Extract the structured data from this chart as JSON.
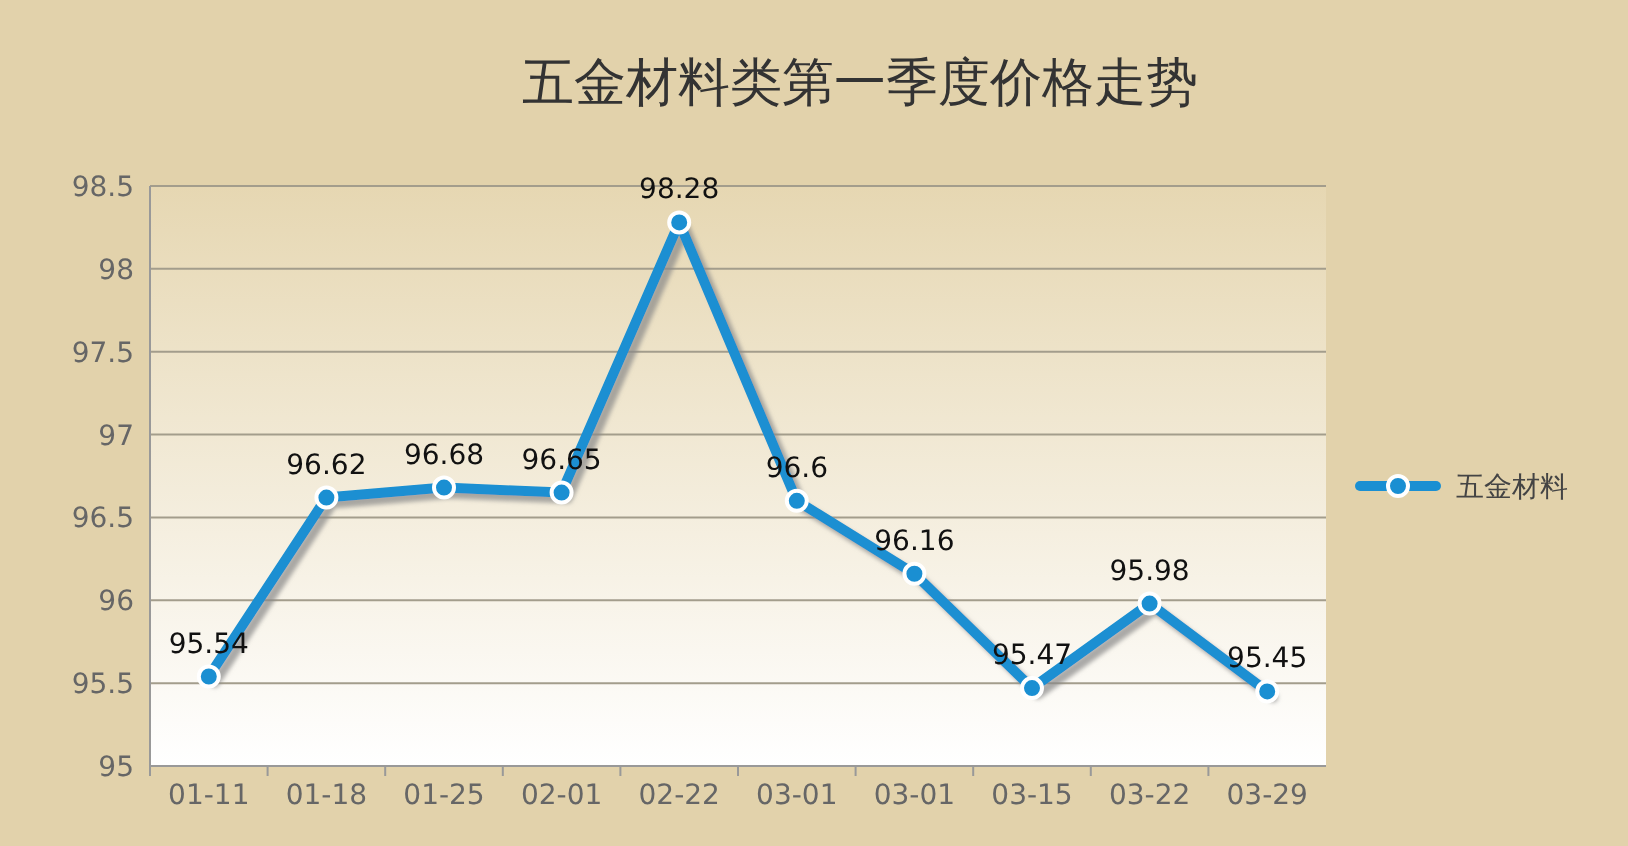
{
  "chart_data": {
    "type": "line",
    "title": "五金材料类第一季度价格走势",
    "categories": [
      "01-11",
      "01-18",
      "01-25",
      "02-01",
      "02-22",
      "03-01",
      "03-01",
      "03-15",
      "03-22",
      "03-29"
    ],
    "series": [
      {
        "name": "五金材料",
        "color": "#1a8fd2",
        "values": [
          95.54,
          96.62,
          96.68,
          96.65,
          98.28,
          96.6,
          96.16,
          95.47,
          95.98,
          95.45
        ]
      }
    ],
    "ylim": [
      95,
      98.5
    ],
    "yticks": [
      95,
      95.5,
      96,
      96.5,
      97,
      97.5,
      98,
      98.5
    ],
    "grid": "y",
    "legend": "right",
    "marker": "circle",
    "line_style": "solid",
    "data_labels": true
  }
}
